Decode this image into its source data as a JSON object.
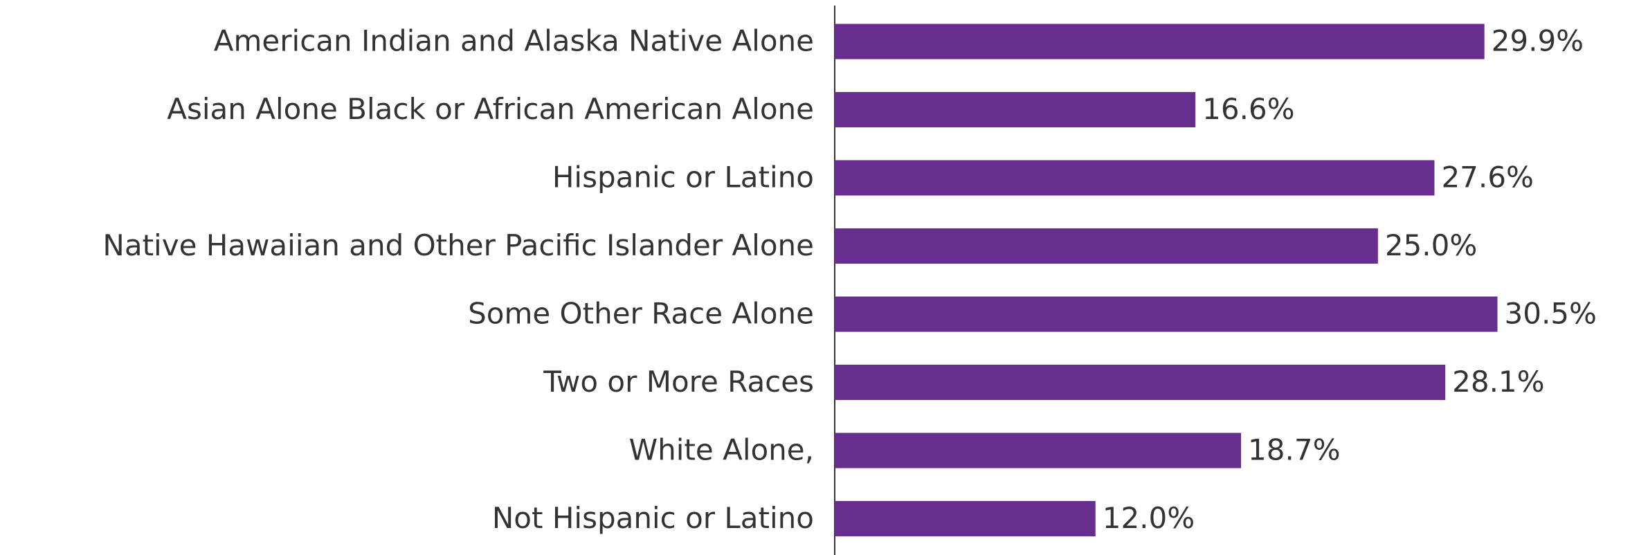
{
  "chart_data": {
    "type": "bar",
    "orientation": "horizontal",
    "categories": [
      "American Indian and Alaska Native Alone",
      "Asian Alone Black or African American Alone",
      "Hispanic or Latino",
      "Native Hawaiian and Other Pacific Islander Alone",
      "Some Other Race Alone",
      "Two or More Races",
      "White Alone,",
      "Not Hispanic or Latino"
    ],
    "values": [
      29.9,
      16.6,
      27.6,
      25.0,
      30.5,
      28.1,
      18.7,
      12.0
    ],
    "value_labels": [
      "29.9%",
      "16.6%",
      "27.6%",
      "25.0%",
      "30.5%",
      "28.1%",
      "18.7%",
      "12.0%"
    ],
    "color": "#672d8f",
    "xlim": [
      0,
      36.6
    ]
  }
}
